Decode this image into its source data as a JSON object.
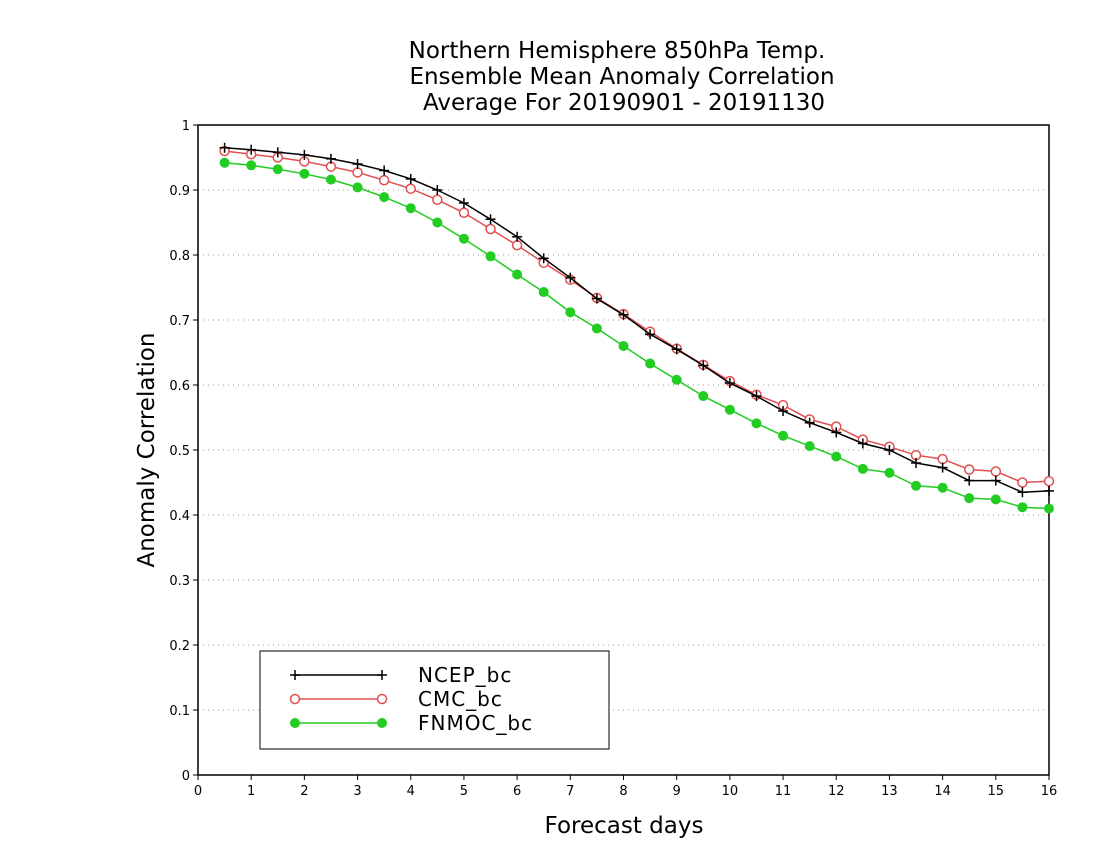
{
  "chart_data": {
    "type": "line",
    "title": [
      "Northern Hemisphere 850hPa Temp.",
      "Ensemble Mean Anomaly Correlation",
      "Average For 20190901 - 20191130"
    ],
    "xlabel": "Forecast days",
    "ylabel": "Anomaly Correlation",
    "xlim": [
      0,
      16
    ],
    "ylim": [
      0,
      1
    ],
    "xticks": [
      0,
      1,
      2,
      3,
      4,
      5,
      6,
      7,
      8,
      9,
      10,
      11,
      12,
      13,
      14,
      15,
      16
    ],
    "yticks": [
      0,
      0.1,
      0.2,
      0.3,
      0.4,
      0.5,
      0.6,
      0.7,
      0.8,
      0.9,
      1
    ],
    "grid": "horizontal dotted",
    "legend_position": "bottom-left",
    "x": [
      0.5,
      1,
      1.5,
      2,
      2.5,
      3,
      3.5,
      4,
      4.5,
      5,
      5.5,
      6,
      6.5,
      7,
      7.5,
      8,
      8.5,
      9,
      9.5,
      10,
      10.5,
      11,
      11.5,
      12,
      12.5,
      13,
      13.5,
      14,
      14.5,
      15,
      15.5,
      16
    ],
    "series": [
      {
        "name": "NCEP_bc",
        "color": "#000000",
        "marker": "plus",
        "values": [
          0.965,
          0.962,
          0.958,
          0.954,
          0.948,
          0.94,
          0.93,
          0.917,
          0.9,
          0.88,
          0.855,
          0.828,
          0.795,
          0.765,
          0.733,
          0.708,
          0.678,
          0.655,
          0.63,
          0.603,
          0.583,
          0.56,
          0.542,
          0.527,
          0.51,
          0.5,
          0.48,
          0.473,
          0.453,
          0.453,
          0.435,
          0.437
        ]
      },
      {
        "name": "CMC_bc",
        "color": "#e05050",
        "marker": "open-circle",
        "values": [
          0.96,
          0.955,
          0.95,
          0.944,
          0.936,
          0.927,
          0.915,
          0.902,
          0.885,
          0.865,
          0.84,
          0.815,
          0.788,
          0.762,
          0.734,
          0.709,
          0.682,
          0.656,
          0.631,
          0.606,
          0.585,
          0.569,
          0.547,
          0.536,
          0.516,
          0.505,
          0.492,
          0.486,
          0.47,
          0.467,
          0.45,
          0.452
        ]
      },
      {
        "name": "FNMOC_bc",
        "color": "#22cc22",
        "marker": "filled-circle",
        "values": [
          0.942,
          0.938,
          0.932,
          0.925,
          0.916,
          0.904,
          0.889,
          0.872,
          0.85,
          0.825,
          0.798,
          0.77,
          0.743,
          0.712,
          0.687,
          0.66,
          0.633,
          0.608,
          0.583,
          0.562,
          0.541,
          0.522,
          0.506,
          0.49,
          0.471,
          0.465,
          0.445,
          0.442,
          0.426,
          0.424,
          0.412,
          0.41
        ]
      }
    ]
  }
}
